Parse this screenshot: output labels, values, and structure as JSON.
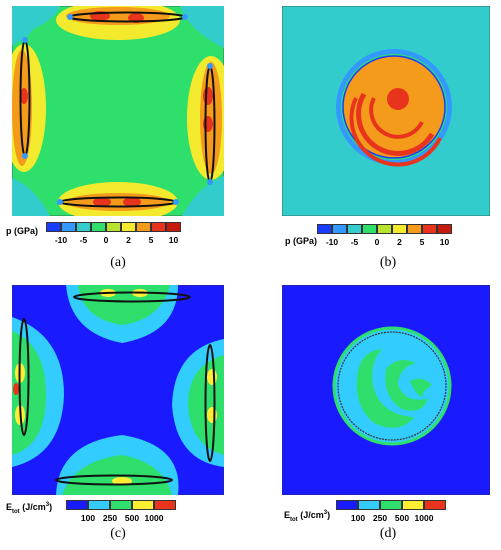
{
  "figure": {
    "panels": [
      {
        "id": "a",
        "caption": "(a)",
        "quantity": "p",
        "legend_title": {
          "main": "p",
          "sub": "",
          "unit": "(GPa)"
        },
        "legend_levels": [
          "#1a3cff",
          "#3399ff",
          "#33cccc",
          "#2ee06b",
          "#b8e22b",
          "#f3ea2d",
          "#f59b1c",
          "#e8341c",
          "#c61a0d"
        ],
        "legend_ticks": [
          "-10",
          "-5",
          "0",
          "2",
          "5",
          "10"
        ],
        "background": "#2ee06b",
        "layout": "four-ellipses"
      },
      {
        "id": "b",
        "caption": "(b)",
        "quantity": "p",
        "legend_title": {
          "main": "p",
          "sub": "",
          "unit": "(GPa)"
        },
        "legend_levels": [
          "#1a3cff",
          "#3399ff",
          "#33cccc",
          "#2ee06b",
          "#b8e22b",
          "#f3ea2d",
          "#f59b1c",
          "#e8341c",
          "#c61a0d"
        ],
        "legend_ticks": [
          "-10",
          "-5",
          "0",
          "2",
          "5",
          "10"
        ],
        "background": "#33cccc",
        "layout": "circle"
      },
      {
        "id": "c",
        "caption": "(c)",
        "quantity": "Etot",
        "legend_title": {
          "main": "E",
          "sub": "tot",
          "unit": "(J/cm",
          "sup": "3",
          "close": ")"
        },
        "legend_levels": [
          "#1a1aff",
          "#33ccff",
          "#2ee06b",
          "#ffee33",
          "#e8341c"
        ],
        "legend_ticks": [
          "100",
          "250",
          "500",
          "1000"
        ],
        "background": "#1a1aff",
        "layout": "four-ellipses"
      },
      {
        "id": "d",
        "caption": "(d)",
        "quantity": "Etot",
        "legend_title": {
          "main": "E",
          "sub": "tot",
          "unit": "(J/cm",
          "sup": "3",
          "close": ")"
        },
        "legend_levels": [
          "#1a1aff",
          "#33ccff",
          "#2ee06b",
          "#ffee33",
          "#e8341c"
        ],
        "legend_ticks": [
          "100",
          "250",
          "500",
          "1000"
        ],
        "background": "#1a1aff",
        "layout": "circle"
      }
    ]
  }
}
